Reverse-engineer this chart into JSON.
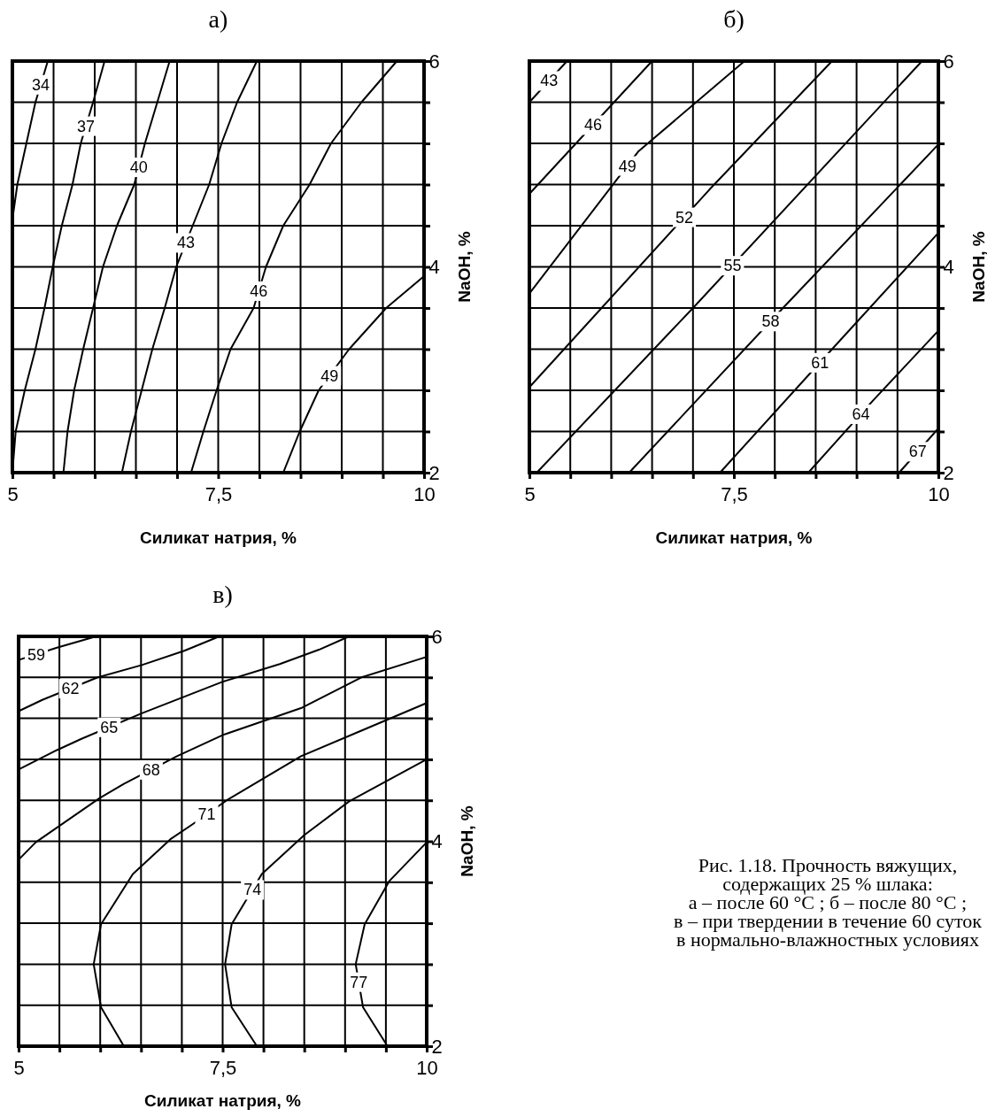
{
  "chart_data": [
    {
      "type": "line",
      "title": "а)",
      "xlabel": "Силикат натрия, %",
      "ylabel": "NaOH, %",
      "xlim": [
        5,
        10
      ],
      "ylim": [
        2,
        6
      ],
      "xticks": [
        {
          "value": 5,
          "label": "5"
        },
        {
          "value": 5.5,
          "label": null
        },
        {
          "value": 6,
          "label": null
        },
        {
          "value": 6.5,
          "label": null
        },
        {
          "value": 7,
          "label": null
        },
        {
          "value": 7.5,
          "label": "7,5"
        },
        {
          "value": 8,
          "label": null
        },
        {
          "value": 8.5,
          "label": null
        },
        {
          "value": 9,
          "label": null
        },
        {
          "value": 9.5,
          "label": null
        },
        {
          "value": 10,
          "label": "10"
        }
      ],
      "yticks": [
        {
          "value": 2,
          "label": "2"
        },
        {
          "value": 2.4,
          "label": null
        },
        {
          "value": 2.8,
          "label": null
        },
        {
          "value": 3.2,
          "label": null
        },
        {
          "value": 3.6,
          "label": null
        },
        {
          "value": 4,
          "label": "4"
        },
        {
          "value": 4.4,
          "label": null
        },
        {
          "value": 4.8,
          "label": null
        },
        {
          "value": 5.2,
          "label": null
        },
        {
          "value": 5.6,
          "label": null
        },
        {
          "value": 6,
          "label": "6"
        }
      ],
      "grid": true,
      "series": [
        {
          "name": "34",
          "color": "#000000",
          "x": [
            5,
            5.06,
            5.17,
            5.28,
            5.43
          ],
          "values": [
            4.46,
            4.8,
            5.2,
            5.6,
            6
          ]
        },
        {
          "name": "37",
          "color": "#000000",
          "x": [
            5,
            5.04,
            5.15,
            5.28,
            5.39,
            5.49,
            5.6,
            5.73,
            5.83,
            5.98,
            6.12
          ],
          "values": [
            2,
            2.4,
            2.8,
            3.2,
            3.6,
            4,
            4.4,
            4.8,
            5.2,
            5.6,
            6
          ]
        },
        {
          "name": "40",
          "color": "#000000",
          "x": [
            5.62,
            5.67,
            5.75,
            5.86,
            5.98,
            6.1,
            6.27,
            6.48,
            6.61,
            6.76,
            6.91
          ],
          "values": [
            2,
            2.4,
            2.8,
            3.2,
            3.6,
            4,
            4.4,
            4.8,
            5.2,
            5.6,
            6
          ]
        },
        {
          "name": "43",
          "color": "#000000",
          "x": [
            6.33,
            6.44,
            6.57,
            6.7,
            6.85,
            6.99,
            7.19,
            7.39,
            7.54,
            7.73,
            7.97
          ],
          "values": [
            2,
            2.4,
            2.8,
            3.2,
            3.6,
            4,
            4.4,
            4.8,
            5.2,
            5.6,
            6
          ]
        },
        {
          "name": "46",
          "color": "#000000",
          "x": [
            7.17,
            7.32,
            7.48,
            7.65,
            7.93,
            8.08,
            8.29,
            8.61,
            8.87,
            9.24,
            9.67
          ],
          "values": [
            2,
            2.4,
            2.8,
            3.2,
            3.6,
            4,
            4.4,
            4.8,
            5.2,
            5.6,
            6
          ]
        },
        {
          "name": "49",
          "color": "#000000",
          "x": [
            8.29,
            8.49,
            8.72,
            9.09,
            9.54,
            10
          ],
          "values": [
            2,
            2.4,
            2.8,
            3.2,
            3.6,
            3.91
          ]
        }
      ]
    },
    {
      "type": "line",
      "title": "б)",
      "xlabel": "Силикат натрия, %",
      "ylabel": "NaOH, %",
      "xlim": [
        5,
        10
      ],
      "ylim": [
        2,
        6
      ],
      "xticks": [
        {
          "value": 5,
          "label": "5"
        },
        {
          "value": 5.5,
          "label": null
        },
        {
          "value": 6,
          "label": null
        },
        {
          "value": 6.5,
          "label": null
        },
        {
          "value": 7,
          "label": null
        },
        {
          "value": 7.5,
          "label": "7,5"
        },
        {
          "value": 8,
          "label": null
        },
        {
          "value": 8.5,
          "label": null
        },
        {
          "value": 9,
          "label": null
        },
        {
          "value": 9.5,
          "label": null
        },
        {
          "value": 10,
          "label": "10"
        }
      ],
      "yticks": [
        {
          "value": 2,
          "label": "2"
        },
        {
          "value": 2.4,
          "label": null
        },
        {
          "value": 2.8,
          "label": null
        },
        {
          "value": 3.2,
          "label": null
        },
        {
          "value": 3.6,
          "label": null
        },
        {
          "value": 4,
          "label": "4"
        },
        {
          "value": 4.4,
          "label": null
        },
        {
          "value": 4.8,
          "label": null
        },
        {
          "value": 5.2,
          "label": null
        },
        {
          "value": 5.6,
          "label": null
        },
        {
          "value": 6,
          "label": "6"
        }
      ],
      "grid": true,
      "series": [
        {
          "name": "43",
          "color": "#000000",
          "x": [
            5,
            5.46
          ],
          "values": [
            5.6,
            6
          ]
        },
        {
          "name": "46",
          "color": "#000000",
          "x": [
            5,
            5.5,
            6.5
          ],
          "values": [
            4.71,
            5.14,
            6
          ]
        },
        {
          "name": "49",
          "color": "#000000",
          "x": [
            5,
            6.33,
            7.63
          ],
          "values": [
            3.74,
            5.12,
            6
          ]
        },
        {
          "name": "52",
          "color": "#000000",
          "x": [
            5,
            7.2,
            8.7
          ],
          "values": [
            2.83,
            4.75,
            6
          ]
        },
        {
          "name": "55",
          "color": "#000000",
          "x": [
            5.09,
            7,
            9.8
          ],
          "values": [
            2,
            3.6,
            6
          ]
        },
        {
          "name": "58",
          "color": "#000000",
          "x": [
            6.22,
            8.1,
            10
          ],
          "values": [
            2,
            3.6,
            5.19
          ]
        },
        {
          "name": "61",
          "color": "#000000",
          "x": [
            7.33,
            8.7,
            10
          ],
          "values": [
            2,
            3.2,
            4.33
          ]
        },
        {
          "name": "64",
          "color": "#000000",
          "x": [
            8.41,
            9.2,
            10
          ],
          "values": [
            2,
            2.7,
            3.38
          ]
        },
        {
          "name": "67",
          "color": "#000000",
          "x": [
            9.52,
            10
          ],
          "values": [
            2,
            2.43
          ]
        }
      ]
    },
    {
      "type": "line",
      "title": "в)",
      "xlabel": "Силикат натрия, %",
      "ylabel": "NaOH, %",
      "xlim": [
        5,
        10
      ],
      "ylim": [
        2,
        6
      ],
      "xticks": [
        {
          "value": 5,
          "label": "5"
        },
        {
          "value": 5.5,
          "label": null
        },
        {
          "value": 6,
          "label": null
        },
        {
          "value": 6.5,
          "label": null
        },
        {
          "value": 7,
          "label": null
        },
        {
          "value": 7.5,
          "label": "7,5"
        },
        {
          "value": 8,
          "label": null
        },
        {
          "value": 8.5,
          "label": null
        },
        {
          "value": 9,
          "label": null
        },
        {
          "value": 9.5,
          "label": null
        },
        {
          "value": 10,
          "label": "10"
        }
      ],
      "yticks": [
        {
          "value": 2,
          "label": "2"
        },
        {
          "value": 2.4,
          "label": null
        },
        {
          "value": 2.8,
          "label": null
        },
        {
          "value": 3.2,
          "label": null
        },
        {
          "value": 3.6,
          "label": null
        },
        {
          "value": 4,
          "label": "4"
        },
        {
          "value": 4.4,
          "label": null
        },
        {
          "value": 4.8,
          "label": null
        },
        {
          "value": 5.2,
          "label": null
        },
        {
          "value": 5.6,
          "label": null
        },
        {
          "value": 6,
          "label": "6"
        }
      ],
      "grid": true,
      "annotations": [
        "Рис. 1.18. Прочность вяжущих,\nсодержащих 25 % шлака:\nа – после 60 °C ; б – после 80 °C ;\nв – при твердении в течение 60 суток\nв нормально-влажностных условиях"
      ],
      "series": [
        {
          "name": "59",
          "color": "#000000",
          "x": [
            5,
            5.47,
            5.95
          ],
          "values": [
            5.77,
            5.89,
            6
          ]
        },
        {
          "name": "62",
          "color": "#000000",
          "x": [
            5,
            5.29,
            5.97,
            6.51,
            7.03,
            7.46
          ],
          "values": [
            5.27,
            5.38,
            5.6,
            5.72,
            5.86,
            6
          ]
        },
        {
          "name": "65",
          "color": "#000000",
          "x": [
            5,
            5.47,
            5.77,
            6.51,
            7.51,
            8.2,
            8.68,
            9.05
          ],
          "values": [
            4.7,
            4.89,
            5,
            5.25,
            5.56,
            5.73,
            5.87,
            6
          ]
        },
        {
          "name": "68",
          "color": "#000000",
          "x": [
            5,
            5.21,
            5.99,
            6.29,
            6.94,
            7.51,
            8.46,
            9.2,
            10
          ],
          "values": [
            3.82,
            3.99,
            4.42,
            4.56,
            4.83,
            5.04,
            5.3,
            5.6,
            5.8
          ]
        },
        {
          "name": "71",
          "color": "#000000",
          "x": [
            6.29,
            6.01,
            5.92,
            6.01,
            6.4,
            6.86,
            7.12,
            7.55,
            8.46,
            9.2,
            10
          ],
          "values": [
            2,
            2.38,
            2.8,
            3.19,
            3.68,
            4.02,
            4.16,
            4.4,
            4.83,
            5.08,
            5.35
          ]
        },
        {
          "name": "74",
          "color": "#000000",
          "x": [
            7.92,
            7.61,
            7.53,
            7.61,
            7.98,
            8.5,
            9.05,
            10
          ],
          "values": [
            2,
            2.38,
            2.8,
            3.19,
            3.68,
            4.06,
            4.39,
            4.8
          ]
        },
        {
          "name": "77",
          "color": "#000000",
          "x": [
            9.52,
            9.22,
            9.13,
            9.24,
            9.54,
            10
          ],
          "values": [
            2,
            2.38,
            2.8,
            3.19,
            3.61,
            3.99
          ]
        }
      ]
    }
  ]
}
